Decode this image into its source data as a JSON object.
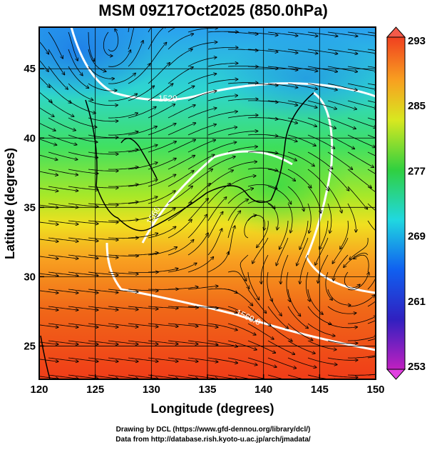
{
  "title": "MSM 09Z17Oct2025 (850.0hPa)",
  "x_label": "Longitude (degrees)",
  "y_label": "Latitude  (degrees)",
  "xlim": [
    120,
    150
  ],
  "ylim": [
    22.6,
    48
  ],
  "xticks": [
    120,
    125,
    130,
    135,
    140,
    145,
    150
  ],
  "yticks": [
    25,
    30,
    35,
    40,
    45
  ],
  "colorbar": {
    "lim": [
      253,
      293
    ],
    "ticks": [
      253,
      261,
      269,
      277,
      285,
      293
    ]
  },
  "contour_labels": [
    "1520",
    "1560",
    "1560.0"
  ],
  "credits": [
    "Drawing by DCL (https://www.gfd-dennou.org/library/dcl/)",
    "Data from http://database.rish.kyoto-u.ac.jp/arch/jmadata/"
  ]
}
